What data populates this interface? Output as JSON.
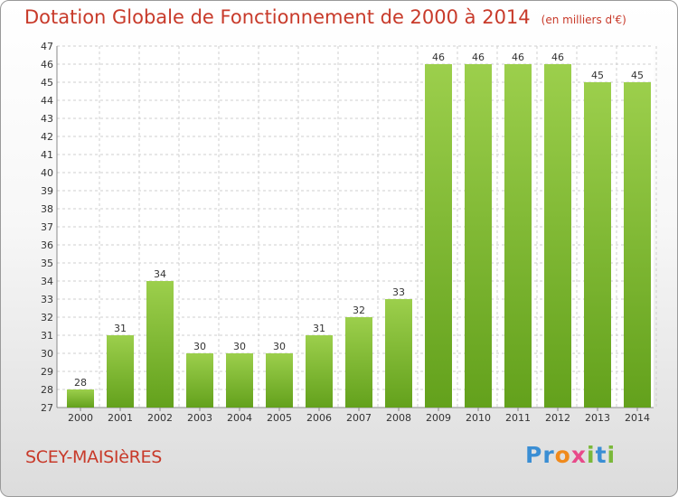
{
  "header": {
    "title": "Dotation Globale de Fonctionnement de 2000 à 2014",
    "subtitle": "(en milliers d'€)"
  },
  "footer": {
    "commune": "SCEY-MAISIèRES",
    "logo_text": "Proxiti",
    "logo_letters": [
      "P",
      "r",
      "o",
      "x",
      "i",
      "t",
      "i"
    ]
  },
  "colors": {
    "bar_top": "#9ccf4c",
    "bar_bottom": "#63a11c",
    "title": "#c83a2a",
    "logo": [
      "#3a8ed4",
      "#3a8ed4",
      "#f08a1c",
      "#e84a8a",
      "#7ab83a",
      "#3a8ed4",
      "#7ab83a"
    ]
  },
  "chart_data": {
    "type": "bar",
    "title": "Dotation Globale de Fonctionnement de 2000 à 2014",
    "subtitle": "(en milliers d'€)",
    "categories": [
      "2000",
      "2001",
      "2002",
      "2003",
      "2004",
      "2005",
      "2006",
      "2007",
      "2008",
      "2009",
      "2010",
      "2011",
      "2012",
      "2013",
      "2014"
    ],
    "values": [
      28,
      31,
      34,
      30,
      30,
      30,
      31,
      32,
      33,
      46,
      46,
      46,
      46,
      45,
      45
    ],
    "ylim": [
      27,
      47
    ],
    "yticks": [
      27,
      28,
      29,
      30,
      31,
      32,
      33,
      34,
      35,
      36,
      37,
      38,
      39,
      40,
      41,
      42,
      43,
      44,
      45,
      46,
      47
    ],
    "grid": true,
    "data_labels": true
  }
}
